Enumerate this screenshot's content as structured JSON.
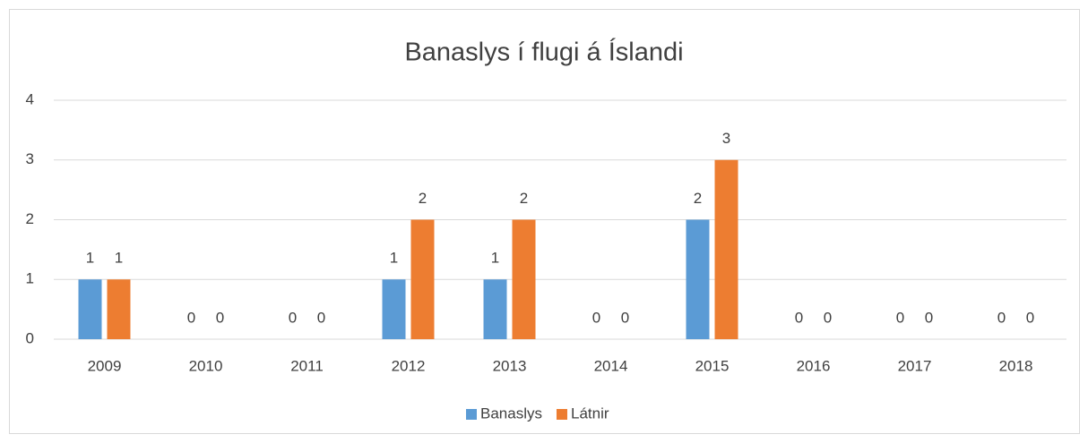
{
  "chart_data": {
    "type": "bar",
    "title": "Banaslys í flugi á Íslandi",
    "categories": [
      "2009",
      "2010",
      "2011",
      "2012",
      "2013",
      "2014",
      "2015",
      "2016",
      "2017",
      "2018"
    ],
    "series": [
      {
        "name": "Banaslys",
        "color": "#5b9bd5",
        "values": [
          1,
          0,
          0,
          1,
          1,
          0,
          2,
          0,
          0,
          0
        ]
      },
      {
        "name": "Látnir",
        "color": "#ed7d31",
        "values": [
          1,
          0,
          0,
          2,
          2,
          0,
          3,
          0,
          0,
          0
        ]
      }
    ],
    "ylim": [
      0,
      4
    ],
    "yticks": [
      0,
      1,
      2,
      3,
      4
    ],
    "grid": true,
    "legend": "bottom"
  }
}
